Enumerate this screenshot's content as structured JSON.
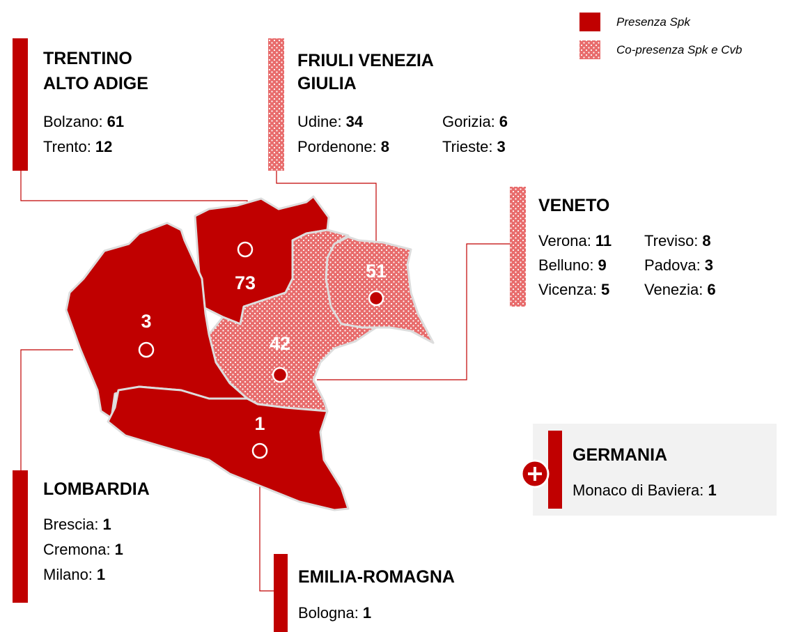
{
  "legend": [
    {
      "label": "Presenza Spk",
      "style": "solid"
    },
    {
      "label": "Co-presenza Spk e Cvb",
      "style": "dotted"
    }
  ],
  "colors": {
    "solid": "#c00000",
    "dotted": "#e86c6c"
  },
  "regions": [
    {
      "title_lines": [
        "TRENTINO",
        "ALTO ADIGE"
      ],
      "style": "solid",
      "map_value": 73,
      "provinces": [
        {
          "name": "Bolzano:",
          "value": 61
        },
        {
          "name": "Trento:",
          "value": 12
        }
      ]
    },
    {
      "title_lines": [
        "FRIULI VENEZIA",
        "GIULIA"
      ],
      "style": "dotted",
      "map_value": 51,
      "provinces": [
        {
          "name": "Udine:",
          "value": 34
        },
        {
          "name": "Pordenone:",
          "value": 8
        },
        {
          "name": "Gorizia:",
          "value": 6
        },
        {
          "name": "Trieste:",
          "value": 3
        }
      ]
    },
    {
      "title_lines": [
        "VENETO"
      ],
      "style": "dotted",
      "map_value": 42,
      "provinces": [
        {
          "name": "Verona:",
          "value": 11
        },
        {
          "name": "Belluno:",
          "value": 9
        },
        {
          "name": "Vicenza:",
          "value": 5
        },
        {
          "name": "Treviso:",
          "value": 8
        },
        {
          "name": "Padova:",
          "value": 3
        },
        {
          "name": "Venezia:",
          "value": 6
        }
      ]
    },
    {
      "title_lines": [
        "LOMBARDIA"
      ],
      "style": "solid",
      "map_value": 3,
      "provinces": [
        {
          "name": "Brescia:",
          "value": 1
        },
        {
          "name": "Cremona:",
          "value": 1
        },
        {
          "name": "Milano:",
          "value": 1
        }
      ]
    },
    {
      "title_lines": [
        "EMILIA-ROMAGNA"
      ],
      "style": "solid",
      "map_value": 1,
      "provinces": [
        {
          "name": "Bologna:",
          "value": 1
        }
      ]
    }
  ],
  "germany": {
    "title": "GERMANIA",
    "provinces": [
      {
        "name": "Monaco di Baviera:",
        "value": 1
      }
    ]
  }
}
